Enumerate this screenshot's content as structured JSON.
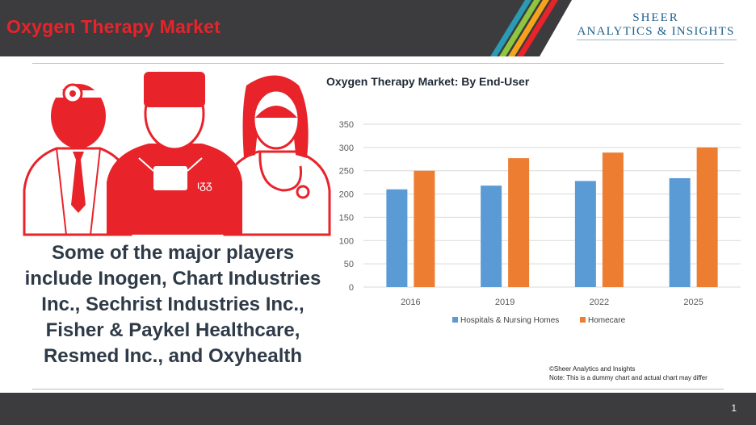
{
  "header": {
    "title": "Oxygen Therapy Market",
    "logo_line1": "SHEER",
    "logo_line2": "ANALYTICS & INSIGHTS"
  },
  "left_text": "Some of the major players include Inogen, Chart Industries Inc., Sechrist Industries Inc., Fisher & Paykel Healthcare, Resmed Inc., and Oxyhealth",
  "chart_data": {
    "type": "bar",
    "title": "Oxygen Therapy Market: By End-User",
    "categories": [
      "2016",
      "2019",
      "2022",
      "2025"
    ],
    "series": [
      {
        "name": "Hospitals & Nursing Homes",
        "values": [
          210,
          218,
          228,
          234
        ],
        "color": "#5b9bd5"
      },
      {
        "name": "Homecare",
        "values": [
          250,
          277,
          289,
          300
        ],
        "color": "#ed7d31"
      }
    ],
    "yticks": [
      "0",
      "50",
      "100",
      "150",
      "200",
      "250",
      "300",
      "350"
    ],
    "ylim": [
      0,
      350
    ],
    "grid": true,
    "legend": "bottom"
  },
  "note": {
    "line1": "©Sheer Analytics and Insights",
    "line2": "Note: This is a dummy chart and actual chart may differ"
  },
  "footer": {
    "page_number": "1"
  },
  "colors": {
    "brand_red": "#e8232a",
    "header_bg": "#3c3c3e",
    "logo_blue": "#1f5f8b"
  }
}
